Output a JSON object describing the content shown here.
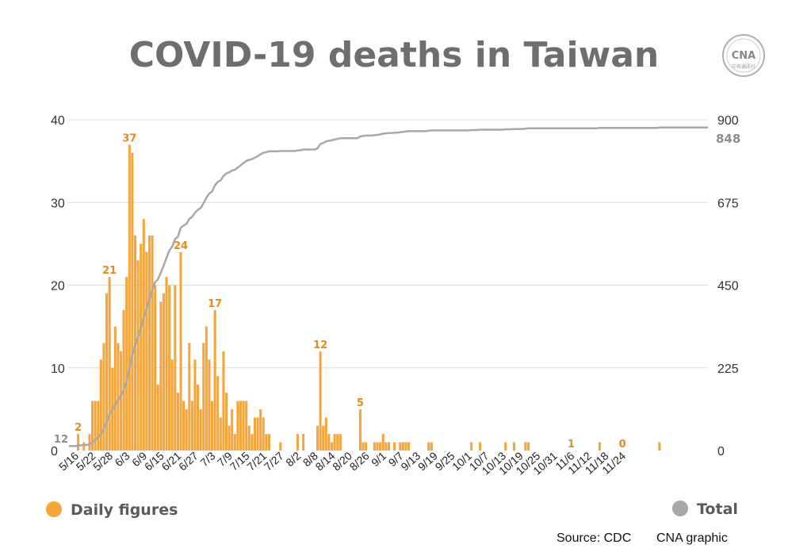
{
  "colors": {
    "daily": "#f5a53a",
    "daily_label": "#e58a1f",
    "total": "#a8a8a8",
    "grid": "#dddddd",
    "title": "#6e6e6e"
  },
  "logo": {
    "text": "CNA",
    "subtext": "中央通訊社",
    "icon": "cna-logo"
  },
  "chart_data": {
    "type": "bar",
    "title": "COVID-19 deaths in Taiwan",
    "y_left": {
      "range": [
        0,
        40
      ],
      "ticks": [
        "0",
        "10",
        "20",
        "30",
        "40"
      ]
    },
    "y_right": {
      "range": [
        0,
        900
      ],
      "ticks": [
        "0",
        "225",
        "450",
        "675",
        "900"
      ]
    },
    "grid": true,
    "x_tick_labels": [
      "5/16",
      "5/22",
      "5/28",
      "6/3",
      "6/9",
      "6/15",
      "6/21",
      "6/27",
      "7/3",
      "7/9",
      "7/15",
      "7/21",
      "7/27",
      "8/2",
      "8/8",
      "8/14",
      "8/20",
      "8/26",
      "9/1",
      "9/7",
      "9/13",
      "9/19",
      "9/25",
      "10/1",
      "10/7",
      "10/13",
      "10/19",
      "10/25",
      "10/31",
      "11/6",
      "11/12",
      "11/18",
      "11/24"
    ],
    "series": [
      {
        "name": "Daily figures",
        "kind": "bar",
        "axis": "left",
        "start_date": "5/16",
        "values": [
          0,
          2,
          0,
          1,
          0,
          2,
          6,
          6,
          6,
          11,
          13,
          19,
          21,
          10,
          15,
          13,
          12,
          17,
          21,
          37,
          36,
          26,
          23,
          25,
          28,
          24,
          26,
          26,
          20,
          8,
          18,
          19,
          21,
          20,
          11,
          20,
          7,
          24,
          6,
          5,
          13,
          6,
          11,
          8,
          5,
          13,
          15,
          11,
          6,
          17,
          9,
          4,
          12,
          7,
          3,
          5,
          2,
          6,
          6,
          6,
          6,
          3,
          2,
          4,
          4,
          5,
          4,
          2,
          2,
          0,
          0,
          0,
          1,
          0,
          0,
          0,
          0,
          0,
          2,
          0,
          2,
          0,
          0,
          0,
          0,
          3,
          12,
          3,
          4,
          2,
          1,
          2,
          2,
          2,
          0,
          0,
          0,
          0,
          0,
          0,
          5,
          1,
          1,
          0,
          0,
          1,
          1,
          1,
          2,
          1,
          1,
          0,
          1,
          0,
          1,
          1,
          1,
          1,
          0,
          0,
          0,
          0,
          0,
          0,
          1,
          1,
          0,
          0,
          0,
          0,
          0,
          0,
          0,
          0,
          0,
          0,
          0,
          0,
          0,
          1,
          0,
          0,
          1,
          0,
          0,
          0,
          0,
          0,
          0,
          0,
          0,
          1,
          0,
          0,
          1,
          0,
          0,
          0,
          1,
          1,
          0,
          0,
          0,
          0,
          0,
          0,
          0,
          0,
          0,
          0,
          0,
          0,
          0,
          0,
          0,
          0,
          0,
          0,
          0,
          0,
          0,
          0,
          0,
          0,
          1,
          0,
          0,
          0,
          0,
          0,
          0,
          0,
          0,
          0,
          0,
          0,
          0,
          0,
          0,
          0,
          0,
          0,
          0,
          0,
          0,
          1,
          0,
          0,
          0,
          0,
          0,
          0,
          0,
          0,
          0,
          0,
          0,
          0,
          0,
          0,
          0,
          0,
          0
        ]
      },
      {
        "name": "Total",
        "kind": "line",
        "axis": "right",
        "start_value": 12,
        "end_value": 848
      }
    ],
    "data_labels": [
      {
        "index": 1,
        "text": "2"
      },
      {
        "index": 12,
        "text": "21"
      },
      {
        "index": 19,
        "text": "37"
      },
      {
        "index": 37,
        "text": "24"
      },
      {
        "index": 49,
        "text": "17"
      },
      {
        "index": 86,
        "text": "12"
      },
      {
        "index": 100,
        "text": "5"
      },
      {
        "index": 174,
        "text": "1"
      },
      {
        "index": 192,
        "text": "0"
      }
    ],
    "start_label": "12",
    "end_label": "848",
    "legend": {
      "position": "bottom",
      "daily": "Daily figures",
      "total": "Total"
    }
  },
  "source": "Source: CDC",
  "credit": "CNA graphic"
}
